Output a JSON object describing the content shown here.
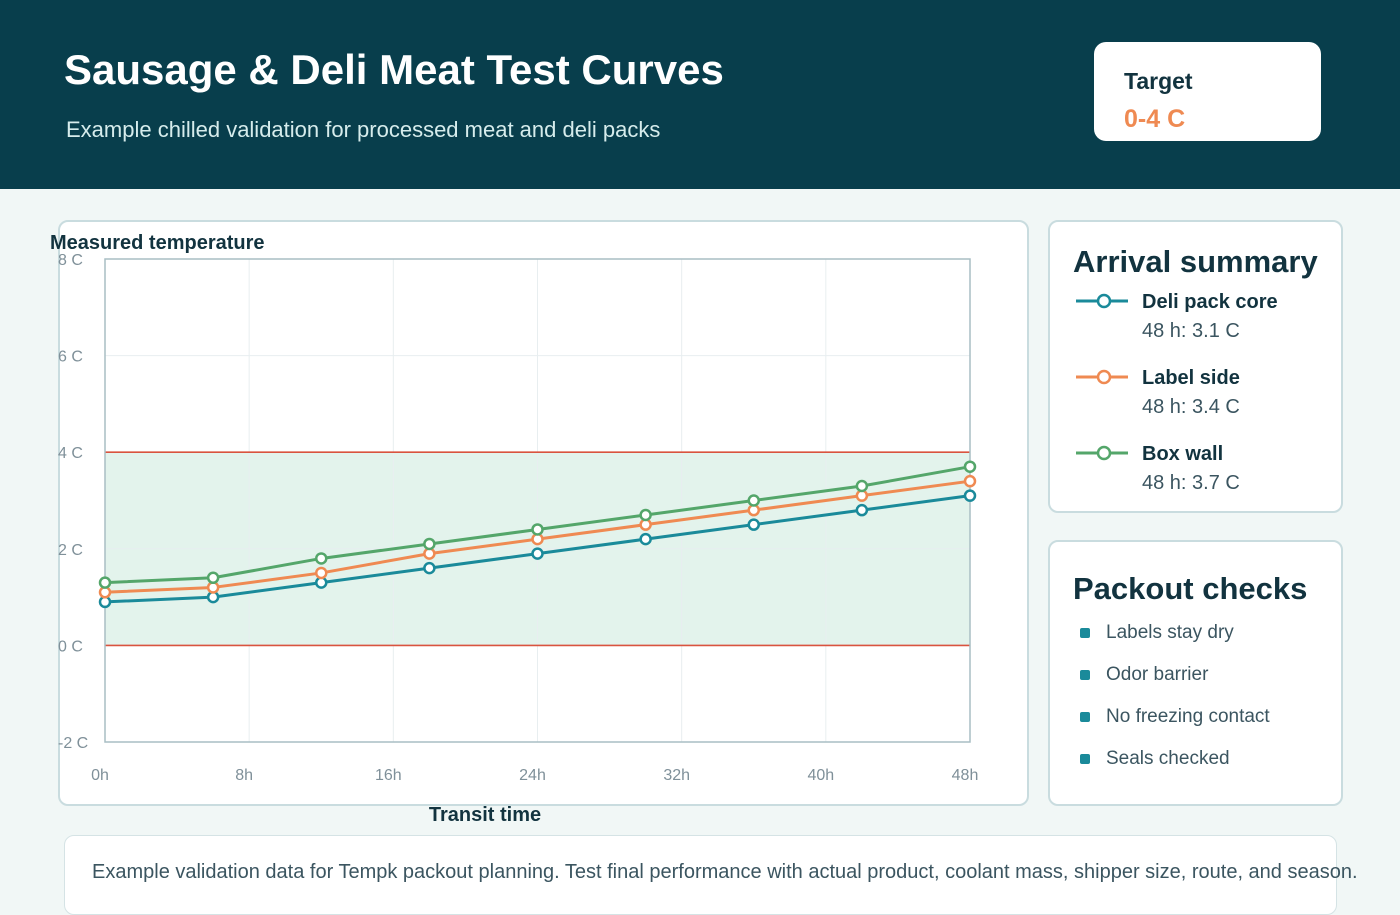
{
  "header": {
    "title": "Sausage & Deli Meat Test Curves",
    "subtitle": "Example chilled validation for processed meat and deli packs",
    "target_label": "Target",
    "target_value": "0-4 C"
  },
  "colors": {
    "header_bg": "#083e4c",
    "accent": "#ef8a52",
    "band_fill": "#e3f3ec",
    "band_line": "#d9533f"
  },
  "chart_data": {
    "type": "line",
    "ylabel": "Measured temperature",
    "xlabel": "Transit time",
    "x_ticks": [
      "0h",
      "8h",
      "16h",
      "24h",
      "32h",
      "40h",
      "48h"
    ],
    "y_ticks": [
      "-2 C",
      "0 C",
      "2 C",
      "4 C",
      "6 C",
      "8 C"
    ],
    "xlim": [
      0,
      48
    ],
    "ylim": [
      -2,
      8
    ],
    "grid": true,
    "target_band": [
      0,
      4
    ],
    "x": [
      0,
      6,
      12,
      18,
      24,
      30,
      36,
      42,
      48
    ],
    "series": [
      {
        "name": "Deli pack core",
        "color": "#1a8a9a",
        "values": [
          0.9,
          1.0,
          1.3,
          1.6,
          1.9,
          2.2,
          2.5,
          2.8,
          3.1
        ]
      },
      {
        "name": "Label side",
        "color": "#ef8a52",
        "values": [
          1.1,
          1.2,
          1.5,
          1.9,
          2.2,
          2.5,
          2.8,
          3.1,
          3.4
        ]
      },
      {
        "name": "Box wall",
        "color": "#54a66a",
        "values": [
          1.3,
          1.4,
          1.8,
          2.1,
          2.4,
          2.7,
          3.0,
          3.3,
          3.7
        ]
      }
    ]
  },
  "summary": {
    "title": "Arrival summary",
    "items": [
      {
        "name": "Deli pack core",
        "value": "48 h: 3.1 C",
        "color": "#1a8a9a"
      },
      {
        "name": "Label side",
        "value": "48 h: 3.4 C",
        "color": "#ef8a52"
      },
      {
        "name": "Box wall",
        "value": "48 h: 3.7 C",
        "color": "#54a66a"
      }
    ]
  },
  "checks": {
    "title": "Packout checks",
    "items": [
      "Labels stay dry",
      "Odor barrier",
      "No freezing contact",
      "Seals checked"
    ]
  },
  "footer": {
    "text": "Example validation data for Tempk packout planning. Test final performance with actual product, coolant mass, shipper size, route, and season."
  }
}
